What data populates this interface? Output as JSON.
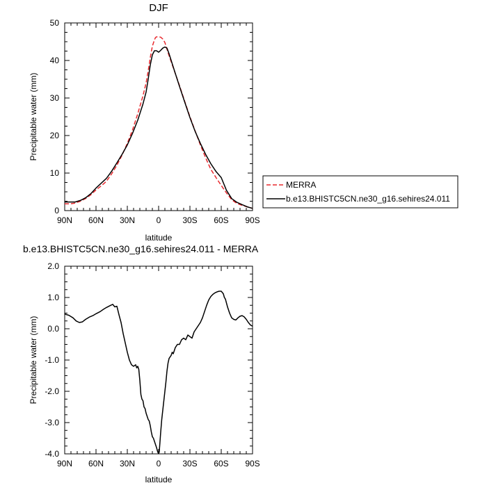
{
  "chart_data": [
    {
      "type": "line",
      "title": "DJF",
      "xlabel": "latitude",
      "ylabel": "Precipitable water (mm)",
      "xlim": [
        90,
        -90
      ],
      "ylim": [
        0,
        50
      ],
      "x_ticks": [
        90,
        60,
        30,
        0,
        -30,
        -60,
        -90
      ],
      "x_tick_labels": [
        "90N",
        "60N",
        "30N",
        "0",
        "30S",
        "60S",
        "90S"
      ],
      "y_ticks": [
        0,
        10,
        20,
        30,
        40,
        50
      ],
      "y_tick_labels": [
        "0",
        "10",
        "20",
        "30",
        "40",
        "50"
      ],
      "legend_position": "right",
      "series": [
        {
          "name": "MERRA",
          "color": "#e8282d",
          "style": "dashed",
          "x": [
            90,
            85,
            80,
            75,
            70,
            65,
            60,
            55,
            50,
            45,
            40,
            35,
            30,
            25,
            20,
            15,
            12,
            10,
            8,
            6,
            4,
            3,
            2,
            0,
            -2,
            -4,
            -6,
            -8,
            -10,
            -15,
            -20,
            -25,
            -30,
            -35,
            -40,
            -45,
            -50,
            -55,
            -60,
            -65,
            -70,
            -75,
            -80,
            -85,
            -90
          ],
          "y": [
            1.8,
            1.8,
            2.0,
            2.5,
            3.2,
            4.2,
            5.5,
            6.6,
            7.8,
            9.8,
            12.1,
            14.8,
            17.9,
            21.5,
            25.8,
            30.6,
            34.0,
            37.2,
            40.8,
            43.8,
            45.5,
            46.1,
            46.3,
            46.3,
            46.2,
            45.7,
            44.8,
            43.0,
            41.3,
            37.3,
            33.3,
            29.1,
            25.0,
            21.2,
            17.5,
            14.1,
            11.0,
            8.8,
            6.7,
            4.7,
            2.9,
            1.9,
            1.4,
            1.0,
            0.6
          ]
        },
        {
          "name": "b.e13.BHISTC5CN.ne30_g16.sehires24.011",
          "color": "#000000",
          "style": "solid",
          "x": [
            90,
            85,
            80,
            75,
            70,
            65,
            60,
            55,
            50,
            45,
            40,
            35,
            30,
            25,
            20,
            15,
            12,
            10,
            8,
            6,
            4,
            2,
            0,
            -2,
            -4,
            -6,
            -8,
            -10,
            -15,
            -20,
            -25,
            -30,
            -35,
            -40,
            -45,
            -50,
            -55,
            -60,
            -65,
            -70,
            -75,
            -80,
            -85,
            -90
          ],
          "y": [
            2.3,
            2.3,
            2.3,
            2.7,
            3.4,
            4.5,
            6.0,
            7.3,
            8.6,
            10.5,
            12.7,
            15.0,
            17.5,
            20.6,
            24.1,
            28.4,
            31.6,
            35.0,
            38.8,
            41.5,
            42.6,
            42.6,
            42.2,
            42.7,
            43.3,
            43.6,
            43.3,
            41.8,
            37.4,
            33.1,
            28.9,
            24.8,
            21.1,
            17.9,
            15.0,
            12.5,
            10.4,
            8.8,
            5.4,
            3.2,
            2.2,
            1.6,
            1.0,
            0.6
          ]
        }
      ]
    },
    {
      "type": "line",
      "title": "b.e13.BHISTC5CN.ne30_g16.sehires24.011 - MERRA",
      "xlabel": "latitude",
      "ylabel": "Precipitable water (mm)",
      "xlim": [
        90,
        -90
      ],
      "ylim": [
        -4,
        2
      ],
      "x_ticks": [
        90,
        60,
        30,
        0,
        -30,
        -60,
        -90
      ],
      "x_tick_labels": [
        "90N",
        "60N",
        "30N",
        "0",
        "30S",
        "60S",
        "90S"
      ],
      "y_ticks": [
        -4,
        -3,
        -2,
        -1,
        0,
        1,
        2
      ],
      "y_tick_labels": [
        "-4.0",
        "-3.0",
        "-2.0",
        "-1.0",
        "0.0",
        "1.0",
        "2.0"
      ],
      "series": [
        {
          "color": "#000000",
          "style": "solid",
          "x": [
            90,
            86,
            82,
            79,
            76,
            73,
            70,
            66,
            63,
            60,
            56,
            53,
            50,
            46,
            44,
            42,
            40,
            38,
            36,
            34,
            32,
            30,
            28,
            26,
            24,
            22,
            21,
            20,
            19,
            18,
            17,
            16,
            15,
            14,
            13,
            12,
            11,
            10,
            9,
            8,
            7,
            6,
            5,
            4,
            3,
            2,
            1,
            0.5,
            0,
            -0.5,
            -1,
            -2,
            -3,
            -4,
            -5,
            -6,
            -7,
            -8,
            -9,
            -10,
            -11,
            -12,
            -13,
            -14,
            -15,
            -16,
            -17,
            -18,
            -20,
            -22,
            -24,
            -26,
            -28,
            -30,
            -32,
            -34,
            -36,
            -38,
            -40,
            -42,
            -44,
            -46,
            -48,
            -50,
            -52,
            -54,
            -56,
            -58,
            -60,
            -62,
            -63,
            -64,
            -66,
            -68,
            -70,
            -72,
            -74,
            -76,
            -78,
            -80,
            -82,
            -84,
            -86,
            -88,
            -90
          ],
          "y": [
            0.47,
            0.43,
            0.35,
            0.25,
            0.2,
            0.22,
            0.3,
            0.38,
            0.42,
            0.48,
            0.55,
            0.62,
            0.68,
            0.75,
            0.78,
            0.7,
            0.72,
            0.45,
            0.2,
            -0.15,
            -0.45,
            -0.75,
            -1.0,
            -1.15,
            -1.2,
            -1.15,
            -1.25,
            -1.2,
            -1.3,
            -1.65,
            -2.1,
            -2.25,
            -2.3,
            -2.5,
            -2.55,
            -2.7,
            -2.8,
            -2.9,
            -2.95,
            -3.1,
            -3.3,
            -3.45,
            -3.5,
            -3.6,
            -3.7,
            -3.8,
            -3.92,
            -3.97,
            -3.98,
            -3.95,
            -3.75,
            -3.3,
            -2.9,
            -2.6,
            -2.3,
            -2.0,
            -1.7,
            -1.35,
            -1.1,
            -0.95,
            -0.9,
            -0.85,
            -0.75,
            -0.8,
            -0.7,
            -0.6,
            -0.55,
            -0.5,
            -0.5,
            -0.35,
            -0.3,
            -0.35,
            -0.2,
            -0.25,
            -0.3,
            -0.1,
            0.0,
            0.1,
            0.2,
            0.35,
            0.55,
            0.75,
            0.92,
            1.03,
            1.1,
            1.15,
            1.18,
            1.2,
            1.2,
            1.12,
            1.0,
            0.95,
            0.7,
            0.5,
            0.35,
            0.3,
            0.28,
            0.35,
            0.4,
            0.42,
            0.38,
            0.3,
            0.2,
            0.12,
            0.08
          ]
        }
      ]
    }
  ]
}
